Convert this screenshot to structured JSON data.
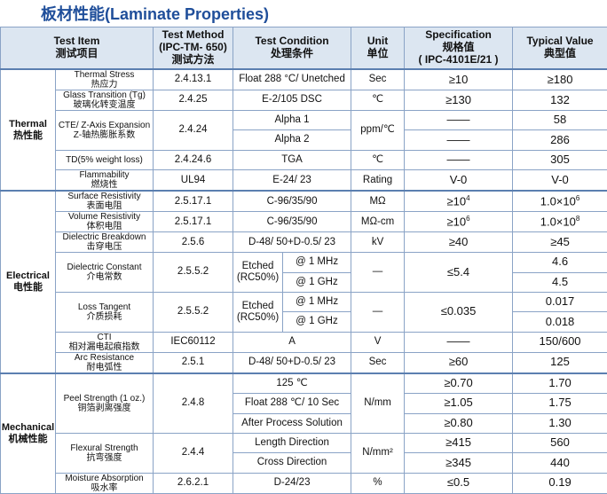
{
  "title": "板材性能(Laminate Properties)",
  "header": {
    "item": [
      "Test Item",
      "测试项目"
    ],
    "method": [
      "Test Method",
      "(IPC-TM- 650)",
      "测试方法"
    ],
    "condition": [
      "Test Condition",
      "处理条件"
    ],
    "unit": [
      "Unit",
      "单位"
    ],
    "spec": [
      "Specification",
      "规格值",
      "( IPC-4101E/21 )"
    ],
    "typical": [
      "Typical Value",
      "典型值"
    ]
  },
  "groups": [
    {
      "name": "Thermal",
      "name_cn": "热性能",
      "items": [
        {
          "name": "Thermal Stress",
          "name_cn": "热应力",
          "method": "2.4.13.1",
          "conditions": [
            "Float 288 °C/ Unetched"
          ],
          "unit": "Sec",
          "spec": [
            "≥10"
          ],
          "typical": [
            "≥180"
          ]
        },
        {
          "name": "Glass Transition (Tg)",
          "name_cn": "玻璃化转变温度",
          "method": "2.4.25",
          "conditions": [
            "E-2/105  DSC"
          ],
          "unit": "℃",
          "spec": [
            "≥130"
          ],
          "typical": [
            "132"
          ]
        },
        {
          "name": "CTE/ Z-Axis Expansion",
          "name_cn": "Z-轴热膨胀系数",
          "method": "2.4.24",
          "conditions": [
            "Alpha 1",
            "Alpha 2"
          ],
          "unit": "ppm/℃",
          "spec": [
            "——",
            "——"
          ],
          "typical": [
            "58",
            "286"
          ]
        },
        {
          "name": "TD(5% weight loss)",
          "method": "2.4.24.6",
          "conditions": [
            "TGA"
          ],
          "unit": "℃",
          "spec": [
            "——"
          ],
          "typical": [
            "305"
          ]
        },
        {
          "name": "Flammability",
          "name_cn": "燃烧性",
          "method": "UL94",
          "conditions": [
            "E-24/ 23"
          ],
          "unit": "Rating",
          "spec": [
            "V-0"
          ],
          "typical": [
            "V-0"
          ]
        }
      ]
    },
    {
      "name": "Electrical",
      "name_cn": "电性能",
      "items": [
        {
          "name": "Surface Resistivity",
          "name_cn": "表面电阻",
          "method": "2.5.17.1",
          "conditions": [
            "C-96/35/90"
          ],
          "unit": "MΩ",
          "spec": [
            {
              "text": "≥10",
              "sup": "4"
            }
          ],
          "typical": [
            {
              "text": "1.0×10",
              "sup": "6"
            }
          ]
        },
        {
          "name": "Volume Resistivity",
          "name_cn": "体积电阻",
          "method": "2.5.17.1",
          "conditions": [
            "C-96/35/90"
          ],
          "unit": "MΩ-cm",
          "spec": [
            {
              "text": "≥10",
              "sup": "6"
            }
          ],
          "typical": [
            {
              "text": "1.0×10",
              "sup": "8"
            }
          ]
        },
        {
          "name": "Dielectric Breakdown",
          "name_cn": "击穿电压",
          "method": "2.5.6",
          "conditions": [
            "D-48/ 50+D-0.5/ 23"
          ],
          "unit": "kV",
          "spec": [
            "≥40"
          ],
          "typical": [
            "≥45"
          ]
        },
        {
          "name": "Dielectric Constant",
          "name_cn": "介电常数",
          "method": "2.5.5.2",
          "treatment": [
            "Etched",
            "(RC50%)"
          ],
          "conditions": [
            "@ 1 MHz",
            "@ 1 GHz"
          ],
          "unit": "—",
          "spec": [
            "≤5.4"
          ],
          "typical": [
            "4.6",
            "4.5"
          ]
        },
        {
          "name": "Loss Tangent",
          "name_cn": "介质损耗",
          "method": "2.5.5.2",
          "treatment": [
            "Etched",
            "(RC50%)"
          ],
          "conditions": [
            "@ 1 MHz",
            "@ 1 GHz"
          ],
          "unit": "—",
          "spec": [
            "≤0.035"
          ],
          "typical": [
            "0.017",
            "0.018"
          ]
        },
        {
          "name": "CTI",
          "name_cn": "相对漏电起痕指数",
          "method": "IEC60112",
          "conditions": [
            "A"
          ],
          "unit": "V",
          "spec": [
            "——"
          ],
          "typical": [
            "150/600"
          ]
        },
        {
          "name": "Arc Resistance",
          "name_cn": "耐电弧性",
          "method": "2.5.1",
          "conditions": [
            "D-48/ 50+D-0.5/ 23"
          ],
          "unit": "Sec",
          "spec": [
            "≥60"
          ],
          "typical": [
            "125"
          ]
        }
      ]
    },
    {
      "name": "Mechanical",
      "name_cn": "机械性能",
      "items": [
        {
          "name": "Peel Strength (1 oz.)",
          "name_cn": "铜箔剥离强度",
          "method": "2.4.8",
          "conditions": [
            "125 ℃",
            "Float 288 ℃/ 10 Sec",
            "After Process Solution"
          ],
          "unit": "N/mm",
          "spec": [
            "≥0.70",
            "≥1.05",
            "≥0.80"
          ],
          "typical": [
            "1.70",
            "1.75",
            "1.30"
          ]
        },
        {
          "name": "Flexural Strength",
          "name_cn": "抗弯强度",
          "method": "2.4.4",
          "conditions": [
            "Length Direction",
            "Cross Direction"
          ],
          "unit": "N/mm²",
          "spec": [
            "≥415",
            "≥345"
          ],
          "typical": [
            "560",
            "440"
          ]
        },
        {
          "name": "Moisture Absorption",
          "name_cn": "吸水率",
          "method": "2.6.2.1",
          "conditions": [
            "D-24/23"
          ],
          "unit": "%",
          "spec": [
            "≤0.5"
          ],
          "typical": [
            "0.19"
          ]
        }
      ]
    }
  ]
}
